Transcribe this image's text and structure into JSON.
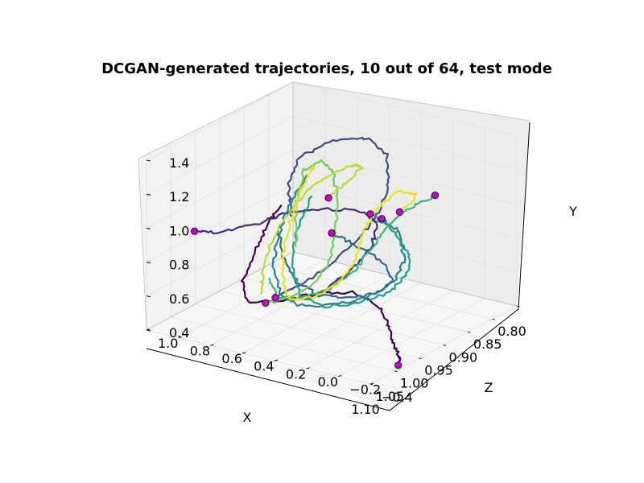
{
  "chart_data": {
    "type": "line3d",
    "title": "DCGAN-generated trajectories, 10 out of 64, test mode",
    "xlabel": "X",
    "ylabel": "Y",
    "zlabel": "Z",
    "x_ticks": [
      "0.80",
      "0.85",
      "0.90",
      "0.95",
      "1.00",
      "1.05",
      "1.10"
    ],
    "y_ticks": [
      "0.4",
      "0.6",
      "0.8",
      "1.0",
      "1.2",
      "1.4"
    ],
    "z_ticks": [
      "−0.4",
      "−0.2",
      "0.0",
      "0.2",
      "0.4",
      "0.6",
      "0.8",
      "1.0"
    ],
    "xlim": [
      0.8,
      1.1
    ],
    "ylim": [
      0.4,
      1.4
    ],
    "zlim": [
      -0.4,
      1.0
    ],
    "grid": true,
    "colormap": "viridis",
    "start_marker_color": "#cc00cc",
    "series": [
      {
        "color": "#440154",
        "points": [
          [
            1.01,
            0.35,
            -0.3
          ],
          [
            0.99,
            0.34,
            -0.25
          ],
          [
            0.96,
            0.36,
            -0.12
          ],
          [
            0.93,
            0.38,
            0.0
          ],
          [
            0.91,
            0.44,
            0.12
          ],
          [
            0.92,
            0.52,
            0.25
          ],
          [
            0.95,
            0.52,
            0.4
          ],
          [
            1.0,
            0.52,
            0.5
          ],
          [
            1.04,
            0.58,
            0.55
          ],
          [
            1.05,
            0.72,
            0.55
          ],
          [
            1.04,
            0.9,
            0.5
          ],
          [
            1.03,
            1.05,
            0.45
          ],
          [
            1.02,
            1.15,
            0.4
          ]
        ]
      },
      {
        "color": "#482878",
        "points": [
          [
            1.1,
            1.05,
            0.7
          ],
          [
            1.08,
            1.03,
            0.6
          ],
          [
            1.05,
            1.08,
            0.45
          ],
          [
            1.02,
            1.12,
            0.35
          ],
          [
            0.98,
            1.1,
            0.25
          ],
          [
            0.94,
            1.05,
            0.15
          ],
          [
            0.92,
            0.95,
            0.1
          ],
          [
            0.93,
            0.82,
            0.12
          ],
          [
            0.95,
            0.7,
            0.18
          ],
          [
            0.98,
            0.62,
            0.25
          ],
          [
            1.0,
            0.58,
            0.32
          ]
        ]
      },
      {
        "color": "#3e4989",
        "points": [
          [
            1.0,
            0.55,
            0.5
          ],
          [
            0.98,
            0.62,
            0.4
          ],
          [
            0.95,
            0.72,
            0.3
          ],
          [
            0.93,
            0.85,
            0.2
          ],
          [
            0.91,
            1.0,
            0.12
          ],
          [
            0.9,
            1.15,
            0.1
          ],
          [
            0.89,
            1.3,
            0.14
          ],
          [
            0.9,
            1.4,
            0.22
          ],
          [
            0.94,
            1.42,
            0.32
          ],
          [
            0.98,
            1.38,
            0.4
          ],
          [
            1.0,
            1.25,
            0.42
          ],
          [
            1.0,
            1.05,
            0.4
          ]
        ]
      },
      {
        "color": "#31688e",
        "points": [
          [
            0.95,
            0.9,
            0.3
          ],
          [
            0.93,
            0.82,
            0.22
          ],
          [
            0.9,
            0.7,
            0.15
          ],
          [
            0.89,
            0.58,
            0.1
          ],
          [
            0.91,
            0.52,
            0.14
          ],
          [
            0.94,
            0.52,
            0.22
          ],
          [
            0.97,
            0.56,
            0.32
          ],
          [
            0.99,
            0.65,
            0.4
          ],
          [
            1.0,
            0.8,
            0.45
          ],
          [
            1.0,
            0.95,
            0.48
          ]
        ]
      },
      {
        "color": "#26828e",
        "points": [
          [
            0.88,
            0.9,
            0.2
          ],
          [
            0.86,
            0.8,
            0.15
          ],
          [
            0.86,
            0.65,
            0.12
          ],
          [
            0.88,
            0.55,
            0.12
          ],
          [
            0.92,
            0.5,
            0.18
          ],
          [
            0.96,
            0.5,
            0.26
          ],
          [
            1.0,
            0.54,
            0.34
          ],
          [
            1.02,
            0.62,
            0.4
          ],
          [
            1.03,
            0.78,
            0.42
          ],
          [
            1.03,
            0.95,
            0.4
          ],
          [
            1.02,
            1.15,
            0.36
          ],
          [
            1.0,
            1.32,
            0.3
          ]
        ]
      },
      {
        "color": "#1f9e89",
        "points": [
          [
            0.92,
            1.0,
            0.15
          ],
          [
            0.9,
            0.9,
            0.08
          ],
          [
            0.88,
            0.75,
            0.04
          ],
          [
            0.87,
            0.6,
            0.06
          ],
          [
            0.89,
            0.5,
            0.12
          ],
          [
            0.93,
            0.48,
            0.2
          ],
          [
            0.97,
            0.5,
            0.28
          ],
          [
            1.0,
            0.6,
            0.34
          ],
          [
            1.01,
            0.78,
            0.36
          ],
          [
            1.01,
            0.98,
            0.34
          ],
          [
            0.99,
            1.18,
            0.3
          ]
        ]
      },
      {
        "color": "#35b779",
        "points": [
          [
            0.82,
            0.98,
            0.05
          ],
          [
            0.85,
            0.95,
            0.1
          ],
          [
            0.88,
            0.88,
            0.15
          ],
          [
            0.9,
            0.76,
            0.2
          ],
          [
            0.92,
            0.64,
            0.25
          ],
          [
            0.95,
            0.56,
            0.32
          ],
          [
            0.98,
            0.54,
            0.4
          ],
          [
            1.01,
            0.58,
            0.46
          ],
          [
            1.02,
            0.7,
            0.48
          ]
        ]
      },
      {
        "color": "#6ece58",
        "points": [
          [
            1.02,
            0.55,
            0.5
          ],
          [
            0.99,
            0.56,
            0.42
          ],
          [
            0.96,
            0.62,
            0.36
          ],
          [
            0.95,
            0.76,
            0.3
          ],
          [
            0.95,
            0.92,
            0.28
          ],
          [
            0.95,
            1.1,
            0.26
          ],
          [
            0.96,
            1.28,
            0.26
          ],
          [
            0.98,
            1.38,
            0.28
          ],
          [
            1.0,
            1.34,
            0.32
          ],
          [
            1.01,
            1.15,
            0.34
          ],
          [
            1.01,
            0.9,
            0.34
          ]
        ]
      },
      {
        "color": "#b5de2b",
        "points": [
          [
            0.94,
            1.08,
            0.35
          ],
          [
            0.92,
            1.15,
            0.3
          ],
          [
            0.9,
            1.22,
            0.26
          ],
          [
            0.92,
            1.26,
            0.28
          ],
          [
            0.96,
            1.22,
            0.34
          ],
          [
            1.0,
            1.1,
            0.4
          ],
          [
            1.02,
            0.95,
            0.45
          ],
          [
            1.03,
            0.78,
            0.48
          ],
          [
            1.03,
            0.62,
            0.5
          ]
        ]
      },
      {
        "color": "#e5e419",
        "points": [
          [
            0.86,
            0.92,
            0.15
          ],
          [
            0.84,
            1.0,
            0.1
          ],
          [
            0.86,
            1.04,
            0.16
          ],
          [
            0.89,
            0.98,
            0.2
          ],
          [
            0.91,
            0.86,
            0.22
          ],
          [
            0.92,
            0.72,
            0.24
          ],
          [
            0.94,
            0.6,
            0.28
          ],
          [
            0.97,
            0.54,
            0.34
          ],
          [
            1.0,
            0.56,
            0.4
          ],
          [
            1.01,
            0.66,
            0.42
          ],
          [
            1.01,
            0.84,
            0.42
          ],
          [
            1.0,
            1.04,
            0.4
          ],
          [
            0.99,
            1.22,
            0.36
          ],
          [
            0.98,
            1.34,
            0.32
          ]
        ]
      }
    ]
  }
}
